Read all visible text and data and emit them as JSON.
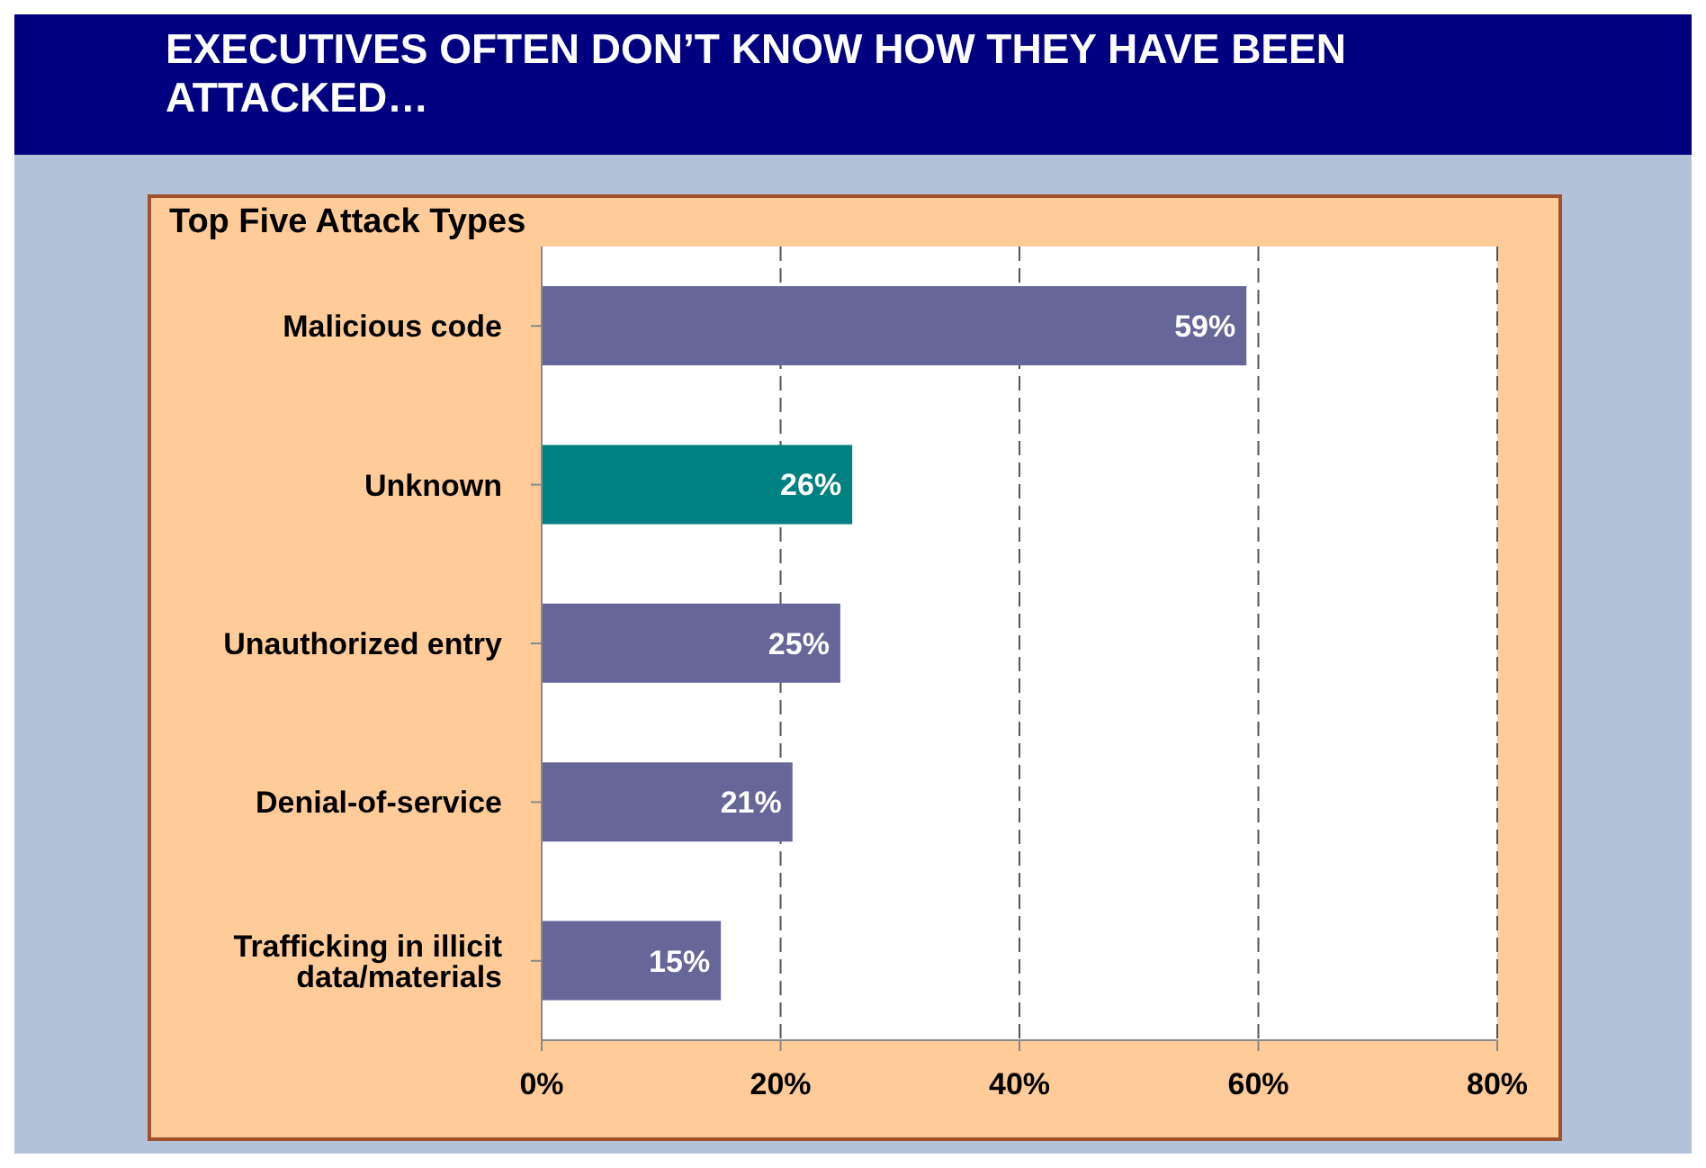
{
  "chart_data": {
    "type": "bar",
    "orientation": "horizontal",
    "title": "EXECUTIVES OFTEN DON’T KNOW HOW THEY HAVE BEEN ATTACKED…",
    "subtitle": "Top Five Attack Types",
    "categories": [
      "Malicious code",
      "Unknown",
      "Unauthorized entry",
      "Denial-of-service",
      "Trafficking in illicit data/materials"
    ],
    "values": [
      59,
      26,
      25,
      21,
      15
    ],
    "colors": [
      "#666699",
      "#008080",
      "#666699",
      "#666699",
      "#666699"
    ],
    "value_labels": [
      "59%",
      "26%",
      "25%",
      "21%",
      "15%"
    ],
    "xlim": [
      0,
      80
    ],
    "xticks": [
      {
        "value": 0,
        "label": "0%"
      },
      {
        "value": 20,
        "label": "20%"
      },
      {
        "value": 40,
        "label": "40%"
      },
      {
        "value": 60,
        "label": "60%"
      },
      {
        "value": 80,
        "label": "80%"
      }
    ],
    "grid": "x"
  }
}
